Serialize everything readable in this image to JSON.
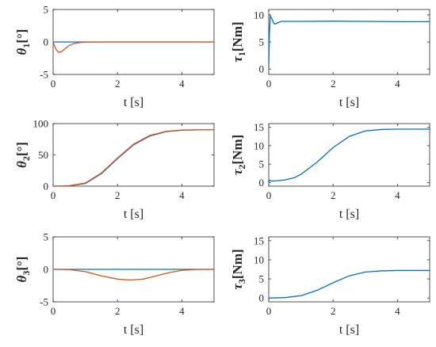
{
  "chart_data": [
    {
      "type": "line",
      "ylabel_symbol": "θ",
      "ylabel_sub": "1",
      "ylabel_unit": "[°]",
      "xlabel": "t [s]",
      "xlim": [
        0,
        5
      ],
      "ylim": [
        -5,
        5
      ],
      "xticks": [
        0,
        2,
        4
      ],
      "yticks": [
        -5,
        0,
        5
      ],
      "series": [
        {
          "color": "#0072BD",
          "x": [
            0,
            0.5,
            1,
            2,
            3,
            4,
            5
          ],
          "y": [
            0,
            0,
            0,
            0,
            0,
            0,
            0
          ]
        },
        {
          "color": "#D95319",
          "x": [
            0,
            0.05,
            0.1,
            0.15,
            0.2,
            0.3,
            0.4,
            0.5,
            0.6,
            0.8,
            1.0,
            1.5,
            2,
            3,
            4,
            5
          ],
          "y": [
            0,
            -0.7,
            -1.2,
            -1.5,
            -1.6,
            -1.35,
            -0.9,
            -0.55,
            -0.3,
            -0.1,
            -0.03,
            0,
            0,
            0,
            0,
            0
          ]
        }
      ]
    },
    {
      "type": "line",
      "ylabel_symbol": "τ",
      "ylabel_sub": "1",
      "ylabel_unit": "[Nm]",
      "xlabel": "t [s]",
      "xlim": [
        0,
        5
      ],
      "ylim": [
        -1,
        11
      ],
      "xticks": [
        0,
        2,
        4
      ],
      "yticks": [
        0,
        5,
        10
      ],
      "series": [
        {
          "color": "#0072BD",
          "x": [
            0,
            0.02,
            0.05,
            0.1,
            0.15,
            0.2,
            0.3,
            0.4,
            0.6,
            1,
            2,
            3,
            4,
            5
          ],
          "y": [
            0,
            6.5,
            9.8,
            9.3,
            8.5,
            8.3,
            8.6,
            8.8,
            8.8,
            8.8,
            8.85,
            8.8,
            8.75,
            8.75
          ]
        }
      ]
    },
    {
      "type": "line",
      "ylabel_symbol": "θ",
      "ylabel_sub": "2",
      "ylabel_unit": "[°]",
      "xlabel": "t [s]",
      "xlim": [
        0,
        5
      ],
      "ylim": [
        0,
        100
      ],
      "xticks": [
        0,
        2,
        4
      ],
      "yticks": [
        0,
        50,
        100
      ],
      "series": [
        {
          "color": "#0072BD",
          "x": [
            0,
            0.5,
            1,
            1.5,
            2,
            2.5,
            3,
            3.5,
            4,
            4.5,
            5
          ],
          "y": [
            0,
            0.5,
            4.3,
            20,
            44,
            66,
            80,
            87,
            89.5,
            90,
            90
          ]
        },
        {
          "color": "#D95319",
          "x": [
            0,
            0.5,
            1,
            1.5,
            2,
            2.5,
            3,
            3.5,
            4,
            4.5,
            5
          ],
          "y": [
            0,
            0.7,
            5,
            21,
            45,
            67,
            81,
            87.5,
            89.7,
            90,
            90
          ]
        }
      ]
    },
    {
      "type": "line",
      "ylabel_symbol": "τ",
      "ylabel_sub": "2",
      "ylabel_unit": "[Nm]",
      "xlabel": "t [s]",
      "xlim": [
        0,
        5
      ],
      "ylim": [
        -1,
        16
      ],
      "xticks": [
        0,
        2,
        4
      ],
      "yticks": [
        0,
        5,
        10,
        15
      ],
      "series": [
        {
          "color": "#0072BD",
          "x": [
            0,
            0.02,
            0.1,
            0.3,
            0.5,
            0.8,
            1,
            1.5,
            2,
            2.5,
            3,
            3.5,
            4,
            4.5,
            5
          ],
          "y": [
            0,
            0.6,
            0.4,
            0.5,
            0.7,
            1.3,
            2.2,
            5.5,
            9.5,
            12.5,
            14,
            14.4,
            14.5,
            14.5,
            14.5
          ]
        }
      ]
    },
    {
      "type": "line",
      "ylabel_symbol": "θ",
      "ylabel_sub": "3",
      "ylabel_unit": "[°]",
      "xlabel": "t [s]",
      "xlim": [
        0,
        5
      ],
      "ylim": [
        -5,
        5
      ],
      "xticks": [
        0,
        2,
        4
      ],
      "yticks": [
        -5,
        0,
        5
      ],
      "series": [
        {
          "color": "#0072BD",
          "x": [
            0,
            1,
            2,
            3,
            4,
            5
          ],
          "y": [
            0,
            0,
            0,
            0,
            0,
            0
          ]
        },
        {
          "color": "#D95319",
          "x": [
            0,
            0.5,
            1,
            1.5,
            2,
            2.4,
            2.8,
            3.2,
            3.6,
            4,
            4.5,
            5
          ],
          "y": [
            0,
            -0.05,
            -0.35,
            -1.0,
            -1.5,
            -1.65,
            -1.5,
            -1.0,
            -0.5,
            -0.15,
            -0.02,
            0
          ]
        }
      ]
    },
    {
      "type": "line",
      "ylabel_symbol": "τ",
      "ylabel_sub": "3",
      "ylabel_unit": "[Nm]",
      "xlabel": "t [s]",
      "xlim": [
        0,
        5
      ],
      "ylim": [
        -1,
        16
      ],
      "xticks": [
        0,
        2,
        4
      ],
      "yticks": [
        0,
        5,
        10,
        15
      ],
      "series": [
        {
          "color": "#0072BD",
          "x": [
            0,
            0.5,
            1,
            1.5,
            2,
            2.5,
            3,
            3.5,
            4,
            5
          ],
          "y": [
            0,
            0.1,
            0.6,
            2,
            4,
            5.8,
            6.8,
            7.1,
            7.2,
            7.2
          ]
        }
      ]
    }
  ]
}
